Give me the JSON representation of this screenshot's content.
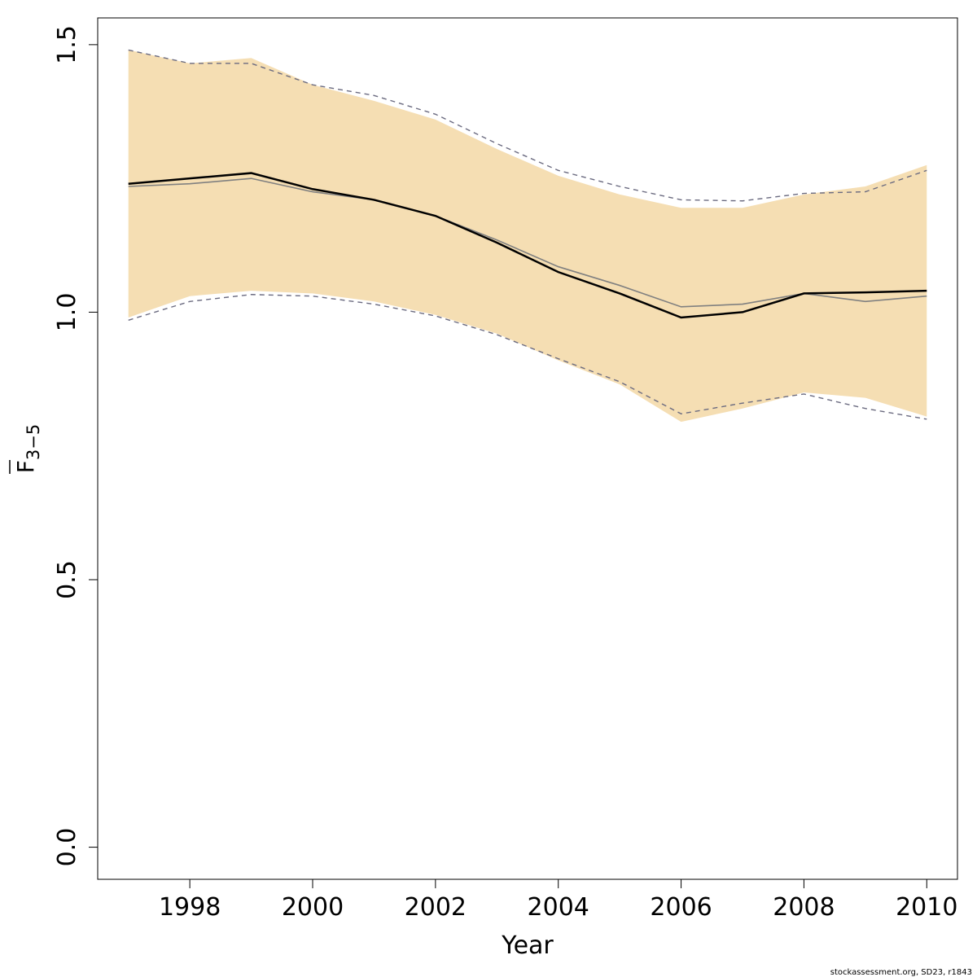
{
  "chart_data": {
    "type": "line",
    "title": "",
    "xlabel": "Year",
    "ylabel": {
      "main": "F",
      "subscript": "3−5"
    },
    "xlim": [
      1996.5,
      2010.5
    ],
    "ylim": [
      -0.06,
      1.55
    ],
    "x_ticks": [
      1998,
      2000,
      2002,
      2004,
      2006,
      2008,
      2010
    ],
    "y_ticks": [
      0.0,
      0.5,
      1.0,
      1.5
    ],
    "y_tick_labels": [
      "0.0",
      "0.5",
      "1.0",
      "1.5"
    ],
    "grid": false,
    "x": [
      1997,
      1998,
      1999,
      2000,
      2001,
      2002,
      2003,
      2004,
      2005,
      2006,
      2007,
      2008,
      2009,
      2010
    ],
    "band": {
      "upper": [
        1.49,
        1.465,
        1.475,
        1.425,
        1.395,
        1.36,
        1.305,
        1.255,
        1.22,
        1.195,
        1.195,
        1.22,
        1.235,
        1.275
      ],
      "lower": [
        0.99,
        1.03,
        1.04,
        1.035,
        1.02,
        0.995,
        0.96,
        0.91,
        0.865,
        0.795,
        0.82,
        0.85,
        0.84,
        0.805
      ]
    },
    "series": [
      {
        "values": [
          1.24,
          1.25,
          1.26,
          1.23,
          1.21,
          1.18,
          1.13,
          1.075,
          1.035,
          0.99,
          1.0,
          1.035,
          1.037,
          1.04
        ]
      },
      {
        "values": [
          1.235,
          1.24,
          1.25,
          1.225,
          1.21,
          1.18,
          1.135,
          1.085,
          1.05,
          1.01,
          1.015,
          1.035,
          1.02,
          1.03
        ]
      },
      {
        "values": [
          1.49,
          1.465,
          1.465,
          1.425,
          1.405,
          1.37,
          1.315,
          1.265,
          1.235,
          1.21,
          1.208,
          1.222,
          1.225,
          1.265
        ]
      },
      {
        "values": [
          0.985,
          1.02,
          1.033,
          1.03,
          1.015,
          0.993,
          0.958,
          0.913,
          0.87,
          0.81,
          0.83,
          0.847,
          0.82,
          0.8
        ]
      }
    ],
    "colors": {
      "band": "#f5deb3",
      "series": [
        "#000000",
        "#808080",
        "#6b6b80",
        "#6b6b80"
      ]
    }
  },
  "footer": "stockassessment.org, SD23, r1843"
}
